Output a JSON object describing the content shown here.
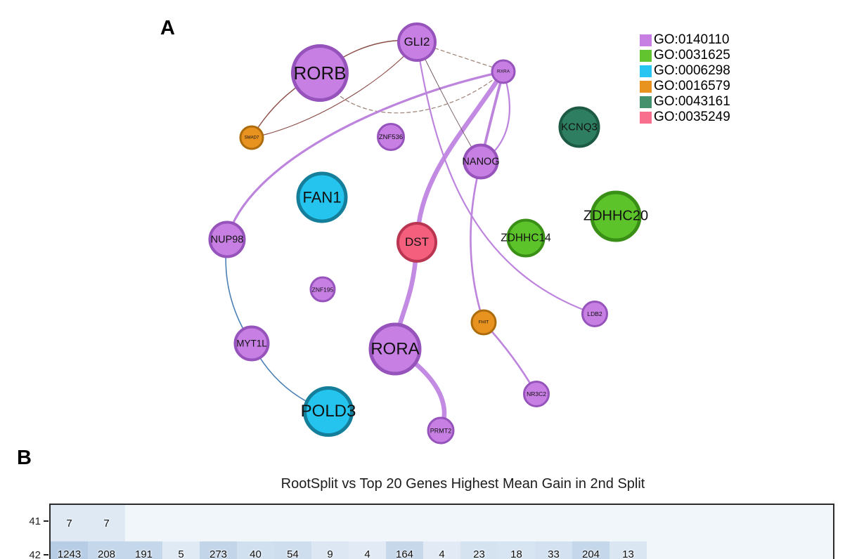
{
  "panels": {
    "a_label": "A",
    "b_label": "B"
  },
  "chart_data": [
    {
      "type": "network",
      "panel": "A",
      "legend": [
        {
          "label": "GO:0140110",
          "color": "#c77fe3"
        },
        {
          "label": "GO:0031625",
          "color": "#62c42e"
        },
        {
          "label": "GO:0006298",
          "color": "#29c5f2"
        },
        {
          "label": "GO:0016579",
          "color": "#e8921f"
        },
        {
          "label": "GO:0043161",
          "color": "#46916d"
        },
        {
          "label": "GO:0035249",
          "color": "#f76f8d"
        }
      ],
      "nodes": [
        {
          "label": "RORB",
          "group": "GO:0140110",
          "size": "large"
        },
        {
          "label": "GLI2",
          "group": "GO:0140110",
          "size": "medium"
        },
        {
          "label": "RXRA",
          "group": "GO:0140110",
          "size": "small"
        },
        {
          "label": "SMAD7",
          "group": "GO:0016579",
          "size": "small"
        },
        {
          "label": "ZNF536",
          "group": "GO:0140110",
          "size": "small"
        },
        {
          "label": "NANOG",
          "group": "GO:0140110",
          "size": "medium"
        },
        {
          "label": "KCNQ3",
          "group": "GO:0043161",
          "size": "medium"
        },
        {
          "label": "FAN1",
          "group": "GO:0006298",
          "size": "large"
        },
        {
          "label": "DST",
          "group": "GO:0035249",
          "size": "medium"
        },
        {
          "label": "ZDHHC14",
          "group": "GO:0031625",
          "size": "medium"
        },
        {
          "label": "ZDHHC20",
          "group": "GO:0031625",
          "size": "large"
        },
        {
          "label": "NUP98",
          "group": "GO:0140110",
          "size": "medium"
        },
        {
          "label": "ZNF195",
          "group": "GO:0140110",
          "size": "small"
        },
        {
          "label": "FHIT",
          "group": "GO:0016579",
          "size": "small"
        },
        {
          "label": "LDB2",
          "group": "GO:0140110",
          "size": "small"
        },
        {
          "label": "MYT1L",
          "group": "GO:0140110",
          "size": "medium"
        },
        {
          "label": "RORA",
          "group": "GO:0140110",
          "size": "large"
        },
        {
          "label": "NR3C2",
          "group": "GO:0140110",
          "size": "small"
        },
        {
          "label": "POLD3",
          "group": "GO:0006298",
          "size": "large"
        },
        {
          "label": "PRMT2",
          "group": "GO:0140110",
          "size": "small"
        }
      ],
      "edges": [
        {
          "source": "SMAD7",
          "target": "RORB",
          "style": "darkred"
        },
        {
          "source": "SMAD7",
          "target": "GLI2",
          "style": "darkred"
        },
        {
          "source": "RORB",
          "target": "GLI2",
          "style": "darkred"
        },
        {
          "source": "GLI2",
          "target": "RXRA",
          "style": "tan-dashed"
        },
        {
          "source": "RORB",
          "target": "RXRA",
          "style": "tan-dashed"
        },
        {
          "source": "NUP98",
          "target": "RXRA",
          "style": "purple"
        },
        {
          "source": "RXRA",
          "target": "DST",
          "style": "purple-thick"
        },
        {
          "source": "DST",
          "target": "RORA",
          "style": "purple-thick"
        },
        {
          "source": "RORA",
          "target": "PRMT2",
          "style": "purple-thick"
        },
        {
          "source": "RXRA",
          "target": "NANOG",
          "style": "purple"
        },
        {
          "source": "RXRA",
          "target": "NANOG",
          "style": "purple-thin"
        },
        {
          "source": "GLI2",
          "target": "NANOG",
          "style": "dark-thin"
        },
        {
          "source": "GLI2",
          "target": "LDB2",
          "style": "purple"
        },
        {
          "source": "NANOG",
          "target": "FHIT",
          "style": "purple"
        },
        {
          "source": "FHIT",
          "target": "NR3C2",
          "style": "purple"
        },
        {
          "source": "NUP98",
          "target": "MYT1L",
          "style": "blue"
        },
        {
          "source": "MYT1L",
          "target": "POLD3",
          "style": "blue"
        }
      ]
    },
    {
      "type": "heatmap",
      "panel": "B",
      "title": "RootSplit vs Top 20 Genes Highest Mean Gain in 2nd Split",
      "row_labels": [
        "41",
        "42"
      ],
      "n_columns": 21,
      "rows": [
        [
          7,
          7,
          null,
          null,
          null,
          null,
          null,
          null,
          null,
          null,
          null,
          null,
          null,
          null,
          null,
          null,
          null,
          null,
          null,
          null,
          null
        ],
        [
          1243,
          208,
          191,
          5,
          273,
          40,
          54,
          9,
          4,
          164,
          4,
          23,
          18,
          33,
          204,
          13,
          null,
          null,
          null,
          null,
          null
        ]
      ],
      "colors": {
        "value_min": "#eef4fa",
        "value_max": "#b7cde5",
        "empty": "#f1f6fa",
        "border": "#2b2b2b"
      },
      "colormap": "Blues (light)",
      "grid": false,
      "legend_position": "none"
    }
  ]
}
